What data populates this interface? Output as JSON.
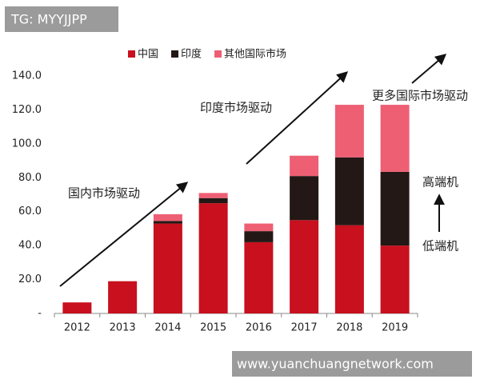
{
  "chart_data": {
    "type": "stacked_bar",
    "categories": [
      "2012",
      "2013",
      "2014",
      "2015",
      "2016",
      "2017",
      "2018",
      "2019"
    ],
    "series": [
      {
        "name": "中国",
        "color": "#c8101e",
        "values": [
          6.5,
          19,
          53,
          65,
          42,
          55,
          52,
          40
        ]
      },
      {
        "name": "印度",
        "color": "#231815",
        "values": [
          0,
          0,
          1.5,
          3,
          6.5,
          26,
          40,
          43.5
        ]
      },
      {
        "name": "其他国际市场",
        "color": "#ee5f74",
        "values": [
          0,
          0,
          4,
          3,
          4.5,
          12,
          31,
          39.5
        ]
      }
    ],
    "ylim": [
      0,
      140
    ],
    "yticks": [
      {
        "value": 0,
        "label": "-"
      },
      {
        "value": 20,
        "label": "20.0"
      },
      {
        "value": 40,
        "label": "40.0"
      },
      {
        "value": 60,
        "label": "60.0"
      },
      {
        "value": 80,
        "label": "80.0"
      },
      {
        "value": 100,
        "label": "100.0"
      },
      {
        "value": 120,
        "label": "120.0"
      },
      {
        "value": 140,
        "label": "140.0"
      }
    ],
    "grid": false,
    "annotations": [
      "国内市场驱动",
      "印度市场驱动",
      "更多国际市场驱动",
      "高端机",
      "低端机"
    ]
  },
  "watermarks": [
    "TG: MYYJJPP",
    "www.yuanchuangnetwork.com"
  ]
}
